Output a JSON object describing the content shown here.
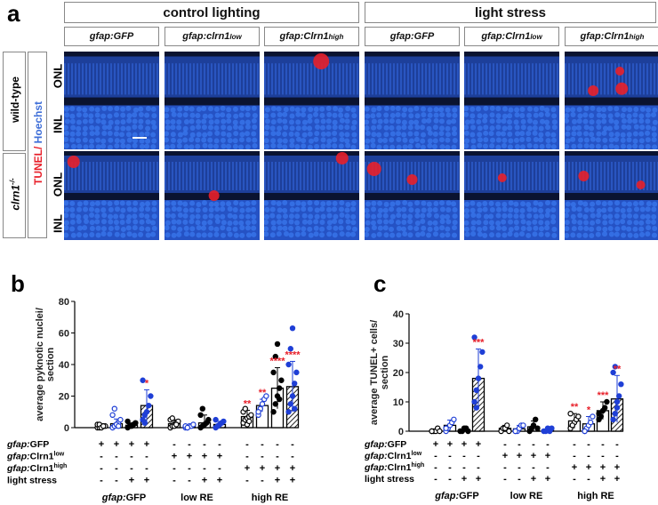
{
  "panel_a": {
    "letter": "a",
    "group_headers": [
      "control lighting",
      "light  stress"
    ],
    "genotypes": [
      {
        "base": "gfap:GFP",
        "sup": ""
      },
      {
        "base": "gfap:clrn1",
        "sup": "low"
      },
      {
        "base": "gfap:Clrn1",
        "sup": "high"
      },
      {
        "base": "gfap:GFP",
        "sup": ""
      },
      {
        "base": "gfap:Clrn1",
        "sup": "low"
      },
      {
        "base": "gfap:Clrn1",
        "sup": "high"
      }
    ],
    "row_labels": [
      "wild-type",
      "clrn1-/-"
    ],
    "row_label_base": "clrn1",
    "row_label_sup": "-/-",
    "stain_tunel": "TUNEL/",
    "stain_hoechst": " Hoechst",
    "layer_labels": [
      "ONL",
      "INL",
      "ONL",
      "INL"
    ],
    "colors": {
      "tunel": "#e8202a",
      "hoechst": "#3f6fd8"
    }
  },
  "panel_b": {
    "letter": "b",
    "chart_data": {
      "type": "bar",
      "ylabel": "average pyknotic nuclei/ section",
      "ylim": [
        0,
        80
      ],
      "yticks": [
        0,
        20,
        40,
        60,
        80
      ],
      "groups": [
        "gfap:GFP",
        "low RE",
        "high RE"
      ],
      "bars": [
        {
          "value": 1.0,
          "err": 1.0,
          "style": "open-black",
          "points": [
            0,
            0,
            1,
            1,
            1,
            2,
            2,
            0,
            1
          ],
          "sig": ""
        },
        {
          "value": 2.5,
          "err": 3.0,
          "style": "open-blue",
          "points": [
            0,
            1,
            2,
            3,
            5,
            8,
            12,
            2,
            1
          ],
          "sig": ""
        },
        {
          "value": 1.5,
          "err": 1.5,
          "style": "solid-black",
          "points": [
            0,
            1,
            1,
            2,
            3,
            4,
            1
          ],
          "sig": ""
        },
        {
          "value": 14.0,
          "err": 10.0,
          "style": "hatched-blue",
          "points": [
            5,
            8,
            10,
            14,
            20,
            30,
            3
          ],
          "sig": "*"
        },
        {
          "value": 2.5,
          "err": 2.5,
          "style": "open-black",
          "points": [
            0,
            1,
            2,
            3,
            4,
            5,
            6,
            1,
            2
          ],
          "sig": ""
        },
        {
          "value": 1.0,
          "err": 1.0,
          "style": "open-blue",
          "points": [
            0,
            0,
            1,
            1,
            2,
            1,
            0
          ],
          "sig": ""
        },
        {
          "value": 3.0,
          "err": 5.0,
          "style": "solid-black",
          "points": [
            0,
            1,
            2,
            3,
            5,
            8,
            12,
            2
          ],
          "sig": ""
        },
        {
          "value": 2.0,
          "err": 2.0,
          "style": "hatched-blue",
          "points": [
            0,
            1,
            2,
            3,
            4,
            5,
            1
          ],
          "sig": ""
        },
        {
          "value": 7.0,
          "err": 4.0,
          "style": "open-black",
          "points": [
            3,
            5,
            6,
            7,
            8,
            10,
            12,
            2,
            4
          ],
          "sig": "**"
        },
        {
          "value": 14.0,
          "err": 4.0,
          "style": "open-blue",
          "points": [
            8,
            12,
            15,
            18,
            20,
            10
          ],
          "sig": "**"
        },
        {
          "value": 25.0,
          "err": 13.0,
          "style": "solid-black",
          "points": [
            10,
            15,
            20,
            25,
            30,
            35,
            45,
            53,
            18
          ],
          "sig": "****"
        },
        {
          "value": 26.0,
          "err": 16.0,
          "style": "hatched-blue",
          "points": [
            10,
            15,
            20,
            28,
            35,
            40,
            50,
            63,
            12
          ],
          "sig": "****"
        }
      ],
      "conditions": {
        "row_labels": [
          "gfap:GFP",
          "gfap:Clrn1low",
          "gfap:Clrn1high",
          "light stress"
        ],
        "rows": [
          [
            "+",
            "+",
            "+",
            "+",
            "-",
            "-",
            "-",
            "-",
            "-",
            "-",
            "-",
            "-"
          ],
          [
            "-",
            "-",
            "-",
            "-",
            "+",
            "+",
            "+",
            "+",
            "-",
            "-",
            "-",
            "-"
          ],
          [
            "-",
            "-",
            "-",
            "-",
            "-",
            "-",
            "-",
            "-",
            "+",
            "+",
            "+",
            "+"
          ],
          [
            "-",
            "-",
            "+",
            "+",
            "-",
            "-",
            "+",
            "+",
            "-",
            "-",
            "+",
            "+"
          ]
        ]
      }
    }
  },
  "panel_c": {
    "letter": "c",
    "chart_data": {
      "type": "bar",
      "ylabel": "average TUNEL+ cells/ section",
      "ylim": [
        0,
        40
      ],
      "yticks": [
        0,
        10,
        20,
        30,
        40
      ],
      "groups": [
        "gfap:GFP",
        "low RE",
        "high RE"
      ],
      "bars": [
        {
          "value": 0.3,
          "err": 0.3,
          "style": "open-black",
          "points": [
            0,
            0,
            0,
            1,
            0,
            0
          ],
          "sig": ""
        },
        {
          "value": 2.0,
          "err": 1.8,
          "style": "open-blue",
          "points": [
            0,
            1,
            2,
            3,
            4,
            1
          ],
          "sig": ""
        },
        {
          "value": 0.5,
          "err": 0.5,
          "style": "solid-black",
          "points": [
            0,
            0,
            1,
            1,
            0
          ],
          "sig": ""
        },
        {
          "value": 18.0,
          "err": 10.0,
          "style": "hatched-blue",
          "points": [
            10,
            14,
            18,
            22,
            27,
            32,
            8
          ],
          "sig": "***"
        },
        {
          "value": 1.0,
          "err": 1.0,
          "style": "open-black",
          "points": [
            0,
            1,
            1,
            2,
            0
          ],
          "sig": ""
        },
        {
          "value": 0.8,
          "err": 1.2,
          "style": "open-blue",
          "points": [
            0,
            0,
            1,
            2,
            2,
            0
          ],
          "sig": ""
        },
        {
          "value": 1.5,
          "err": 2.0,
          "style": "solid-black",
          "points": [
            0,
            1,
            2,
            4,
            1
          ],
          "sig": ""
        },
        {
          "value": 0.5,
          "err": 0.5,
          "style": "hatched-blue",
          "points": [
            0,
            0,
            1,
            0,
            1
          ],
          "sig": ""
        },
        {
          "value": 3.5,
          "err": 2.5,
          "style": "open-black",
          "points": [
            1,
            2,
            3,
            4,
            5,
            6,
            2
          ],
          "sig": "**"
        },
        {
          "value": 2.5,
          "err": 2.5,
          "style": "open-blue",
          "points": [
            0,
            1,
            2,
            3,
            5,
            0
          ],
          "sig": "*"
        },
        {
          "value": 7.0,
          "err": 3.0,
          "style": "solid-black",
          "points": [
            4,
            5,
            7,
            8,
            10,
            6
          ],
          "sig": "***"
        },
        {
          "value": 11.0,
          "err": 8.0,
          "style": "hatched-blue",
          "points": [
            4,
            6,
            8,
            12,
            16,
            20,
            22,
            10
          ],
          "sig": "**"
        }
      ],
      "conditions": {
        "row_labels": [
          "gfap:GFP",
          "gfap:Clrn1low",
          "gfap:Clrn1high",
          "light stress"
        ],
        "rows": [
          [
            "+",
            "+",
            "+",
            "+",
            "-",
            "-",
            "-",
            "-",
            "-",
            "-",
            "-",
            "-"
          ],
          [
            "-",
            "-",
            "-",
            "-",
            "+",
            "+",
            "+",
            "+",
            "-",
            "-",
            "-",
            "-"
          ],
          [
            "-",
            "-",
            "-",
            "-",
            "-",
            "-",
            "-",
            "-",
            "+",
            "+",
            "+",
            "+"
          ],
          [
            "-",
            "-",
            "+",
            "+",
            "-",
            "-",
            "+",
            "+",
            "-",
            "-",
            "+",
            "+"
          ]
        ]
      }
    }
  }
}
